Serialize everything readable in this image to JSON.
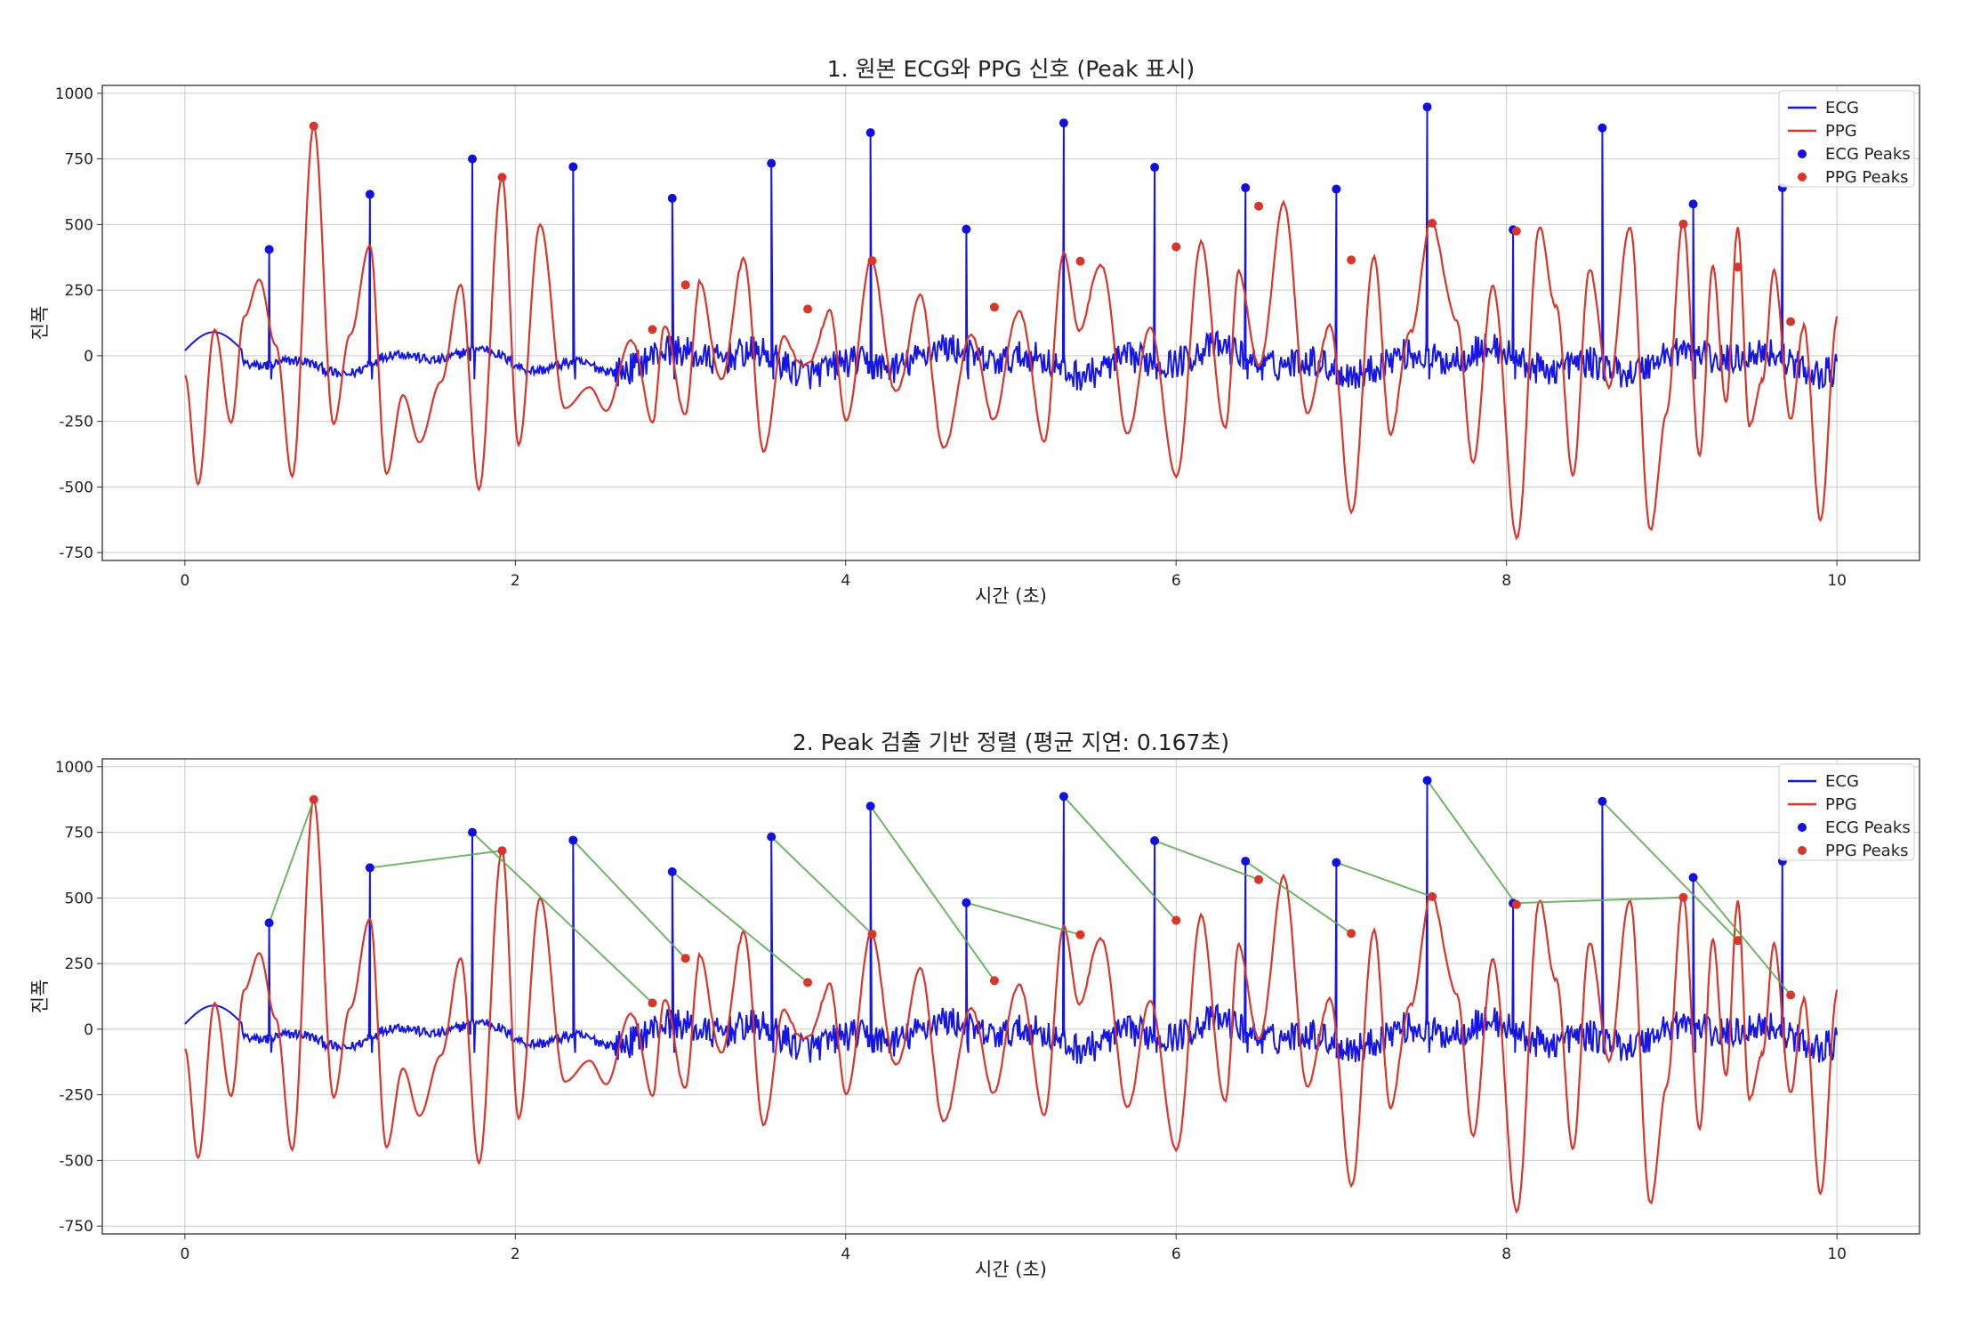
{
  "chart_data": [
    {
      "type": "line",
      "title": "1. 원본 ECG와 PPG 신호 (Peak 표시)",
      "xlabel": "시간 (초)",
      "ylabel": "진폭",
      "xlim": [
        -0.5,
        10.5
      ],
      "ylim": [
        -780,
        1030
      ],
      "xticks": [
        0,
        2,
        4,
        6,
        8,
        10
      ],
      "yticks": [
        -750,
        -500,
        -250,
        0,
        250,
        500,
        750,
        1000
      ],
      "ytick_labels": [
        "-750",
        "-500",
        "-250",
        "0",
        "250",
        "500",
        "750",
        "1000"
      ],
      "grid": true,
      "legend_position": "top-right",
      "legend": [
        "ECG",
        "PPG",
        "ECG Peaks",
        "PPG Peaks"
      ],
      "show_alignment_lines": false
    },
    {
      "type": "line",
      "title": "2. Peak 검출 기반 정렬 (평균 지연: 0.167초)",
      "xlabel": "시간 (초)",
      "ylabel": "진폭",
      "xlim": [
        -0.5,
        10.5
      ],
      "ylim": [
        -780,
        1030
      ],
      "xticks": [
        0,
        2,
        4,
        6,
        8,
        10
      ],
      "yticks": [
        -750,
        -500,
        -250,
        0,
        250,
        500,
        750,
        1000
      ],
      "ytick_labels": [
        "-750",
        "-500",
        "-250",
        "0",
        "250",
        "500",
        "750",
        "1000"
      ],
      "grid": true,
      "legend_position": "top-right",
      "legend": [
        "ECG",
        "PPG",
        "ECG Peaks",
        "PPG Peaks"
      ],
      "show_alignment_lines": true
    }
  ],
  "series_data": {
    "ecg_peaks": {
      "x": [
        0.51,
        1.12,
        1.74,
        2.35,
        2.95,
        3.55,
        4.15,
        4.73,
        5.32,
        5.87,
        6.42,
        6.97,
        7.52,
        8.04,
        8.58,
        9.13,
        9.67
      ],
      "y": [
        405,
        615,
        750,
        720,
        600,
        733,
        850,
        482,
        887,
        718,
        640,
        635,
        948,
        480,
        868,
        578,
        640
      ]
    },
    "ppg_peaks": {
      "x": [
        0.78,
        1.92,
        2.83,
        3.03,
        3.77,
        4.16,
        4.9,
        5.42,
        6.0,
        6.5,
        7.06,
        7.55,
        8.06,
        9.07,
        9.4,
        9.72
      ],
      "y": [
        875,
        680,
        100,
        270,
        178,
        362,
        185,
        360,
        415,
        570,
        365,
        505,
        475,
        502,
        338,
        130
      ]
    },
    "ppg_shape": {
      "x": [
        0,
        0.08,
        0.18,
        0.28,
        0.36,
        0.45,
        0.55,
        0.65,
        0.78,
        0.9,
        1.0,
        1.12,
        1.22,
        1.32,
        1.42,
        1.55,
        1.67,
        1.78,
        1.92,
        2.02,
        2.15,
        2.3,
        2.45,
        2.55,
        2.7,
        2.83,
        2.9,
        3.03,
        3.12,
        3.25,
        3.38,
        3.5,
        3.63,
        3.77,
        3.9,
        4.0,
        4.16,
        4.3,
        4.45,
        4.6,
        4.75,
        4.9,
        5.05,
        5.2,
        5.32,
        5.42,
        5.55,
        5.7,
        5.85,
        6.0,
        6.15,
        6.3,
        6.38,
        6.5,
        6.65,
        6.8,
        6.93,
        7.06,
        7.2,
        7.3,
        7.42,
        7.55,
        7.7,
        7.8,
        7.92,
        8.06,
        8.2,
        8.3,
        8.4,
        8.5,
        8.62,
        8.75,
        8.87,
        8.97,
        9.07,
        9.17,
        9.25,
        9.33,
        9.4,
        9.47,
        9.55,
        9.62,
        9.72,
        9.8,
        9.9,
        10
      ],
      "y": [
        -75,
        -490,
        100,
        -255,
        150,
        290,
        40,
        -460,
        875,
        -260,
        80,
        420,
        -450,
        -150,
        -330,
        -100,
        270,
        -510,
        680,
        -340,
        500,
        -200,
        -120,
        -210,
        60,
        -240,
        100,
        -210,
        270,
        -100,
        380,
        -350,
        60,
        -50,
        178,
        -240,
        362,
        -150,
        220,
        -360,
        80,
        -230,
        185,
        -320,
        375,
        105,
        362,
        -290,
        100,
        -475,
        415,
        -280,
        330,
        -50,
        570,
        -225,
        130,
        -590,
        365,
        -300,
        110,
        505,
        120,
        -400,
        280,
        -700,
        475,
        200,
        -460,
        320,
        -100,
        490,
        -680,
        -200,
        502,
        -380,
        338,
        -170,
        470,
        -250,
        -110,
        338,
        -260,
        130,
        -640,
        150
      ]
    }
  }
}
